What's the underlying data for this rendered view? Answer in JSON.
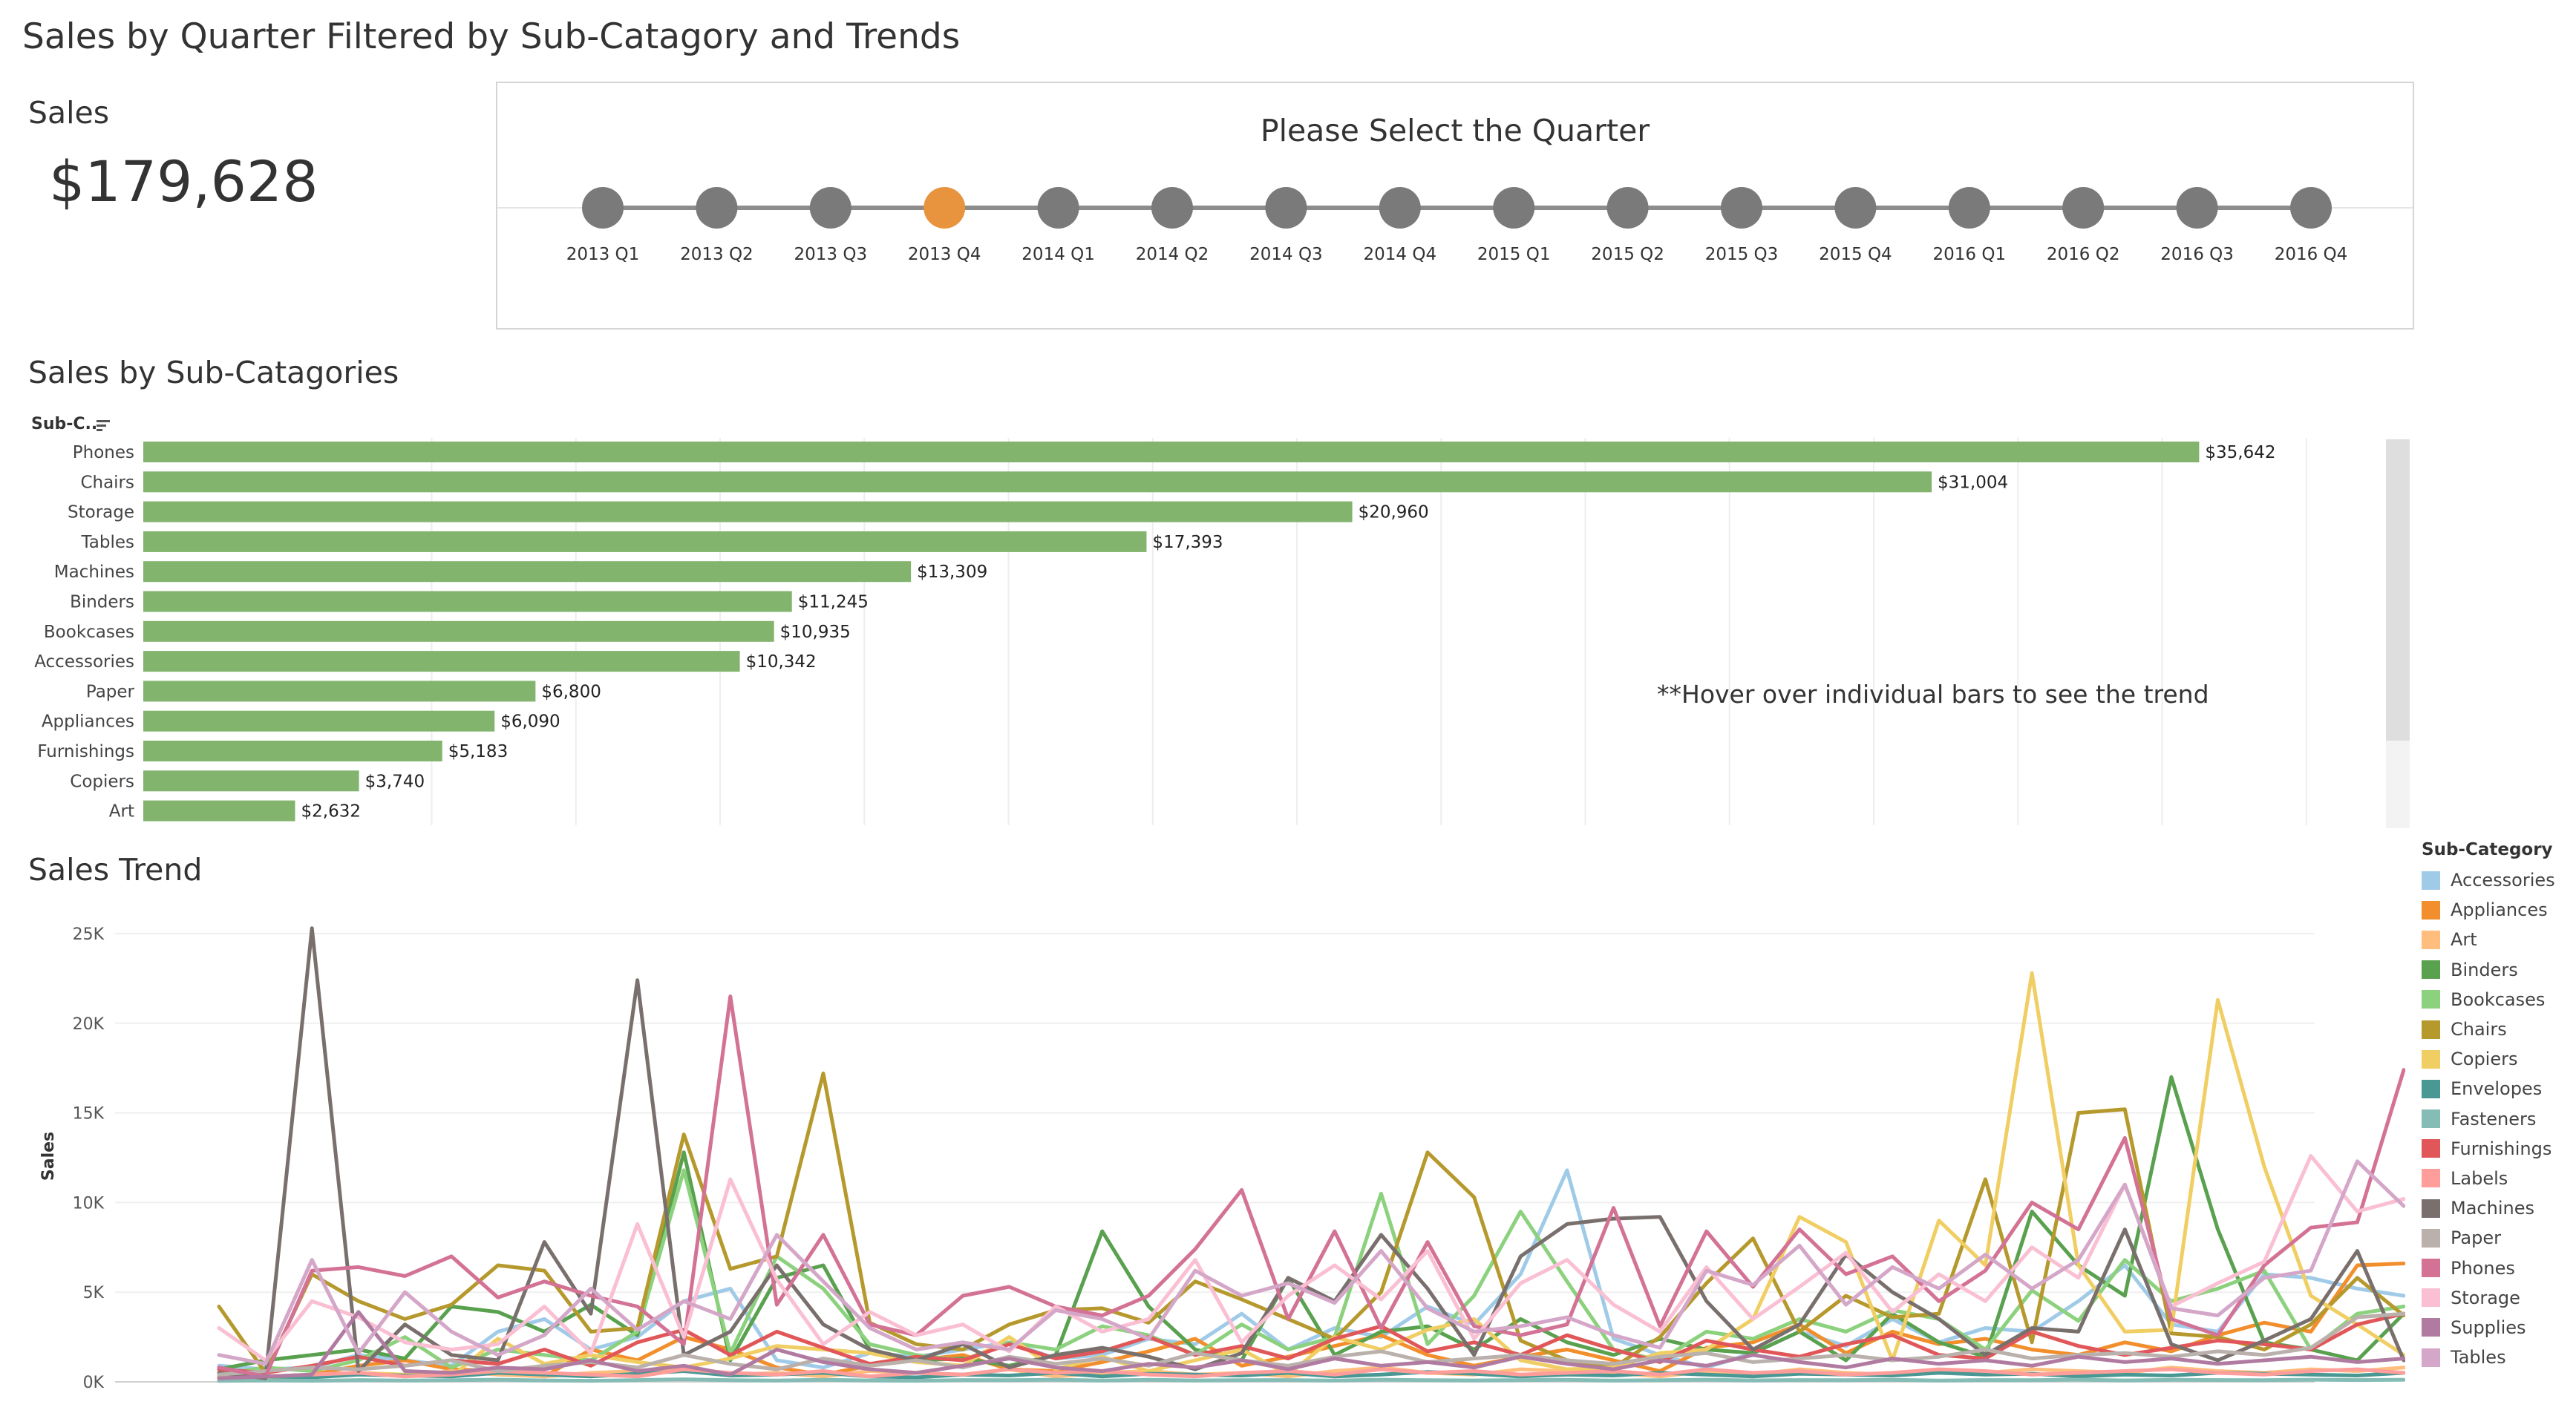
{
  "title": "Sales by Quarter Filtered by Sub-Catagory and Trends",
  "kpi": {
    "label": "Sales",
    "value": "$179,628"
  },
  "quarter_selector": {
    "title": "Please Select the Quarter",
    "quarters": [
      "2013 Q1",
      "2013 Q2",
      "2013 Q3",
      "2013 Q4",
      "2014 Q1",
      "2014 Q2",
      "2014 Q3",
      "2014 Q4",
      "2015 Q1",
      "2015 Q2",
      "2015 Q3",
      "2015 Q4",
      "2016 Q1",
      "2016 Q2",
      "2016 Q3",
      "2016 Q4"
    ],
    "selected_index": 3,
    "colors": {
      "selected": "#E8943F",
      "unselected": "#7A7A7A",
      "track": "#8C8C8C"
    }
  },
  "bar_section": {
    "title": "Sales by Sub-Catagories",
    "header": "Sub-C..",
    "note": "**Hover over individual bars to see the trend"
  },
  "trend_section": {
    "title": "Sales Trend",
    "legend_title": "Sub-Category"
  },
  "chart_data": [
    {
      "type": "bar",
      "orientation": "horizontal",
      "title": "Sales by Sub-Catagories",
      "categories": [
        "Phones",
        "Chairs",
        "Storage",
        "Tables",
        "Machines",
        "Binders",
        "Bookcases",
        "Accessories",
        "Paper",
        "Appliances",
        "Furnishings",
        "Copiers",
        "Art"
      ],
      "values": [
        35642,
        31004,
        20960,
        17393,
        13309,
        11245,
        10935,
        10342,
        6800,
        6090,
        5183,
        3740,
        2632
      ],
      "value_labels": [
        "$35,642",
        "$31,004",
        "$20,960",
        "$17,393",
        "$13,309",
        "$11,245",
        "$10,935",
        "$10,342",
        "$6,800",
        "$6,090",
        "$5,183",
        "$3,740",
        "$2,632"
      ],
      "xlim": [
        0,
        40000
      ],
      "color": "#82B46E"
    },
    {
      "type": "line",
      "title": "Sales Trend",
      "ylabel": "Sales",
      "ylim": [
        0,
        25000
      ],
      "y_ticks": [
        0,
        5000,
        10000,
        15000,
        20000,
        25000
      ],
      "y_tick_labels": [
        "0K",
        "5K",
        "10K",
        "15K",
        "20K",
        "25K"
      ],
      "x_points": 48,
      "legend_position": "right",
      "series": [
        {
          "name": "Accessories",
          "color": "#A0CBE8",
          "values": [
            900,
            700,
            800,
            1500,
            1200,
            900,
            2800,
            3500,
            1800,
            2500,
            4500,
            5200,
            1200,
            800,
            1600,
            1400,
            1800,
            2200,
            1300,
            1500,
            2400,
            2100,
            3800,
            1800,
            3000,
            2500,
            4200,
            3200,
            6000,
            11800,
            2400,
            1500,
            800,
            1600,
            2800,
            2000,
            3500,
            2200,
            3000,
            2800,
            4500,
            6500,
            3200,
            2800,
            6000,
            5800,
            5200,
            4800
          ]
        },
        {
          "name": "Appliances",
          "color": "#F28E2B",
          "values": [
            300,
            200,
            400,
            900,
            1200,
            700,
            600,
            300,
            1800,
            1200,
            2500,
            1800,
            800,
            400,
            900,
            1200,
            1500,
            700,
            600,
            1100,
            1700,
            2400,
            900,
            1400,
            2000,
            2600,
            1500,
            900,
            1400,
            1800,
            1200,
            600,
            1900,
            2200,
            3200,
            1600,
            2800,
            2100,
            2400,
            1800,
            1500,
            2200,
            1700,
            2600,
            3300,
            2800,
            6500,
            6600
          ]
        },
        {
          "name": "Art",
          "color": "#FFBE7D",
          "values": [
            200,
            300,
            400,
            500,
            300,
            600,
            400,
            300,
            500,
            600,
            700,
            400,
            500,
            300,
            600,
            500,
            400,
            700,
            300,
            500,
            600,
            400,
            500,
            300,
            600,
            800,
            500,
            400,
            700,
            600,
            500,
            300,
            600,
            400,
            700,
            500,
            400,
            600,
            500,
            700,
            600,
            500,
            800,
            600,
            500,
            700,
            600,
            800
          ]
        },
        {
          "name": "Binders",
          "color": "#59A14F",
          "values": [
            700,
            1200,
            1500,
            1800,
            1300,
            4200,
            3900,
            2800,
            4300,
            2600,
            12800,
            1200,
            5800,
            6500,
            1800,
            1200,
            1300,
            900,
            1500,
            8400,
            4200,
            1800,
            1200,
            5800,
            1500,
            2800,
            3100,
            1800,
            3500,
            2200,
            1500,
            2400,
            1800,
            1600,
            2800,
            1200,
            3800,
            2200,
            1400,
            9500,
            6500,
            4800,
            17000,
            8500,
            2200,
            1800,
            1200,
            3800
          ]
        },
        {
          "name": "Bookcases",
          "color": "#8CD17D",
          "values": [
            400,
            800,
            600,
            1200,
            2500,
            800,
            1800,
            1500,
            1200,
            2800,
            11800,
            1600,
            7000,
            5200,
            2100,
            1500,
            1200,
            2200,
            1800,
            3100,
            2600,
            1500,
            3200,
            1800,
            2500,
            10500,
            2100,
            4800,
            9500,
            5600,
            1800,
            1200,
            2800,
            2400,
            3500,
            2800,
            4000,
            3500,
            1800,
            5100,
            3400,
            6800,
            4500,
            5200,
            6200,
            1800,
            3800,
            4200
          ]
        },
        {
          "name": "Chairs",
          "color": "#B6992D",
          "values": [
            4200,
            500,
            6000,
            4500,
            3500,
            4300,
            6500,
            6200,
            2800,
            3000,
            13800,
            6300,
            7000,
            17200,
            3300,
            2100,
            1800,
            3200,
            4000,
            4100,
            3300,
            5600,
            4600,
            3500,
            2400,
            5000,
            12800,
            10300,
            2300,
            1200,
            800,
            2500,
            5500,
            8000,
            2800,
            4800,
            3600,
            3800,
            11300,
            2200,
            15000,
            15200,
            2700,
            2500,
            1800,
            3200,
            5800,
            3700
          ]
        },
        {
          "name": "Copiers",
          "color": "#F1CE63",
          "values": [
            100,
            150,
            300,
            500,
            400,
            300,
            2400,
            1000,
            1500,
            1100,
            800,
            1300,
            2000,
            1800,
            1600,
            1100,
            900,
            2500,
            700,
            1400,
            600,
            1200,
            1800,
            400,
            2500,
            1800,
            2900,
            3500,
            1200,
            700,
            800,
            1600,
            1800,
            3500,
            9200,
            7800,
            1200,
            9000,
            6500,
            22800,
            6500,
            2800,
            2900,
            21300,
            12000,
            4800,
            3200,
            1500
          ]
        },
        {
          "name": "Envelopes",
          "color": "#499894",
          "values": [
            200,
            300,
            250,
            400,
            350,
            300,
            500,
            400,
            300,
            450,
            600,
            350,
            400,
            500,
            300,
            250,
            400,
            350,
            500,
            300,
            450,
            400,
            350,
            500,
            300,
            400,
            550,
            450,
            300,
            400,
            350,
            500,
            400,
            300,
            450,
            400,
            350,
            500,
            400,
            450,
            300,
            400,
            350,
            500,
            450,
            400,
            350,
            500
          ]
        },
        {
          "name": "Fasteners",
          "color": "#86BCB6",
          "values": [
            50,
            80,
            60,
            100,
            70,
            90,
            120,
            80,
            60,
            100,
            140,
            90,
            70,
            110,
            80,
            60,
            100,
            90,
            120,
            70,
            110,
            80,
            90,
            100,
            70,
            120,
            90,
            80,
            100,
            110,
            70,
            90,
            120,
            80,
            100,
            90,
            110,
            70,
            100,
            90,
            120,
            80,
            110,
            100,
            90,
            120,
            100,
            110
          ]
        },
        {
          "name": "Furnishings",
          "color": "#E15759",
          "values": [
            700,
            500,
            900,
            1400,
            900,
            1200,
            1000,
            1800,
            900,
            2200,
            2900,
            1500,
            2800,
            1900,
            1000,
            1400,
            1200,
            2100,
            1300,
            1700,
            2500,
            1500,
            2000,
            1300,
            2400,
            3100,
            1700,
            2200,
            1500,
            2600,
            1800,
            1100,
            2300,
            1800,
            1400,
            2100,
            2600,
            1500,
            1300,
            2800,
            2000,
            1500,
            1900,
            2300,
            2100,
            1800,
            3200,
            3800
          ]
        },
        {
          "name": "Labels",
          "color": "#FF9D9A",
          "values": [
            200,
            300,
            400,
            500,
            300,
            400,
            600,
            500,
            400,
            300,
            700,
            500,
            400,
            600,
            300,
            500,
            400,
            700,
            500,
            600,
            400,
            300,
            500,
            600,
            400,
            700,
            500,
            600,
            400,
            500,
            600,
            400,
            700,
            500,
            600,
            400,
            500,
            700,
            600,
            400,
            500,
            600,
            700,
            500,
            400,
            600,
            700,
            500
          ]
        },
        {
          "name": "Machines",
          "color": "#79706E",
          "values": [
            500,
            200,
            25300,
            600,
            3200,
            1500,
            1200,
            7800,
            3800,
            22400,
            1500,
            2800,
            6500,
            3200,
            1800,
            1200,
            2100,
            800,
            1500,
            1900,
            1400,
            700,
            1600,
            5800,
            4500,
            8200,
            5200,
            1500,
            7000,
            8800,
            9100,
            9200,
            4500,
            1800,
            3200,
            7100,
            5000,
            3500,
            1500,
            3000,
            2800,
            8500,
            2100,
            1200,
            2300,
            3500,
            7300,
            1200
          ]
        },
        {
          "name": "Paper",
          "color": "#BAB0AC",
          "values": [
            400,
            600,
            800,
            700,
            900,
            1200,
            600,
            900,
            1100,
            800,
            1500,
            1000,
            700,
            1300,
            900,
            1200,
            800,
            1400,
            1000,
            1300,
            900,
            1600,
            1200,
            900,
            1400,
            1700,
            1100,
            1300,
            1500,
            1200,
            1000,
            1400,
            1600,
            1100,
            1300,
            1500,
            1200,
            1400,
            1800,
            1300,
            1500,
            1600,
            1400,
            1700,
            1500,
            1900,
            3600,
            3800
          ]
        },
        {
          "name": "Phones",
          "color": "#D37295",
          "values": [
            800,
            300,
            6200,
            6400,
            5900,
            7000,
            4700,
            5600,
            4800,
            4200,
            2100,
            21500,
            4300,
            8200,
            3200,
            2600,
            4800,
            5300,
            4200,
            3700,
            4800,
            7400,
            10700,
            3500,
            8400,
            3000,
            7800,
            3100,
            2600,
            3200,
            9700,
            3100,
            8400,
            5300,
            8500,
            6000,
            7000,
            4500,
            6200,
            10000,
            8500,
            13600,
            3500,
            2600,
            6500,
            8600,
            8900,
            17400
          ]
        },
        {
          "name": "Storage",
          "color": "#FABFD2",
          "values": [
            3000,
            1200,
            4500,
            3600,
            2200,
            1800,
            2100,
            4200,
            1600,
            8800,
            2500,
            11300,
            5700,
            2100,
            3900,
            2600,
            3200,
            1700,
            4200,
            2800,
            3500,
            6800,
            2200,
            4800,
            6500,
            4600,
            7300,
            2400,
            5500,
            6800,
            4300,
            2800,
            6400,
            3500,
            5300,
            7200,
            3900,
            6000,
            4500,
            7500,
            5800,
            11000,
            4200,
            5500,
            6700,
            12600,
            9500,
            10200
          ]
        },
        {
          "name": "Supplies",
          "color": "#B07AA1",
          "values": [
            200,
            300,
            400,
            3900,
            600,
            500,
            800,
            700,
            1200,
            600,
            900,
            400,
            1800,
            1100,
            700,
            500,
            900,
            1300,
            800,
            600,
            1000,
            800,
            1200,
            700,
            1300,
            900,
            1100,
            800,
            1400,
            1000,
            700,
            1200,
            900,
            1500,
            1100,
            800,
            1300,
            1000,
            1200,
            900,
            1400,
            1100,
            1300,
            1000,
            1200,
            1400,
            1100,
            1300
          ]
        },
        {
          "name": "Tables",
          "color": "#D4A6C8",
          "values": [
            1500,
            1000,
            6800,
            1600,
            5000,
            2800,
            1500,
            2600,
            5200,
            2900,
            4500,
            3500,
            8200,
            5600,
            3000,
            1800,
            2200,
            1800,
            4000,
            3500,
            2400,
            6200,
            4800,
            5500,
            4400,
            7300,
            4100,
            2800,
            3100,
            3600,
            2600,
            1900,
            6200,
            5400,
            7600,
            4300,
            6400,
            5200,
            7100,
            5200,
            6800,
            11000,
            4100,
            3700,
            5800,
            6200,
            12300,
            9800
          ]
        }
      ]
    }
  ]
}
